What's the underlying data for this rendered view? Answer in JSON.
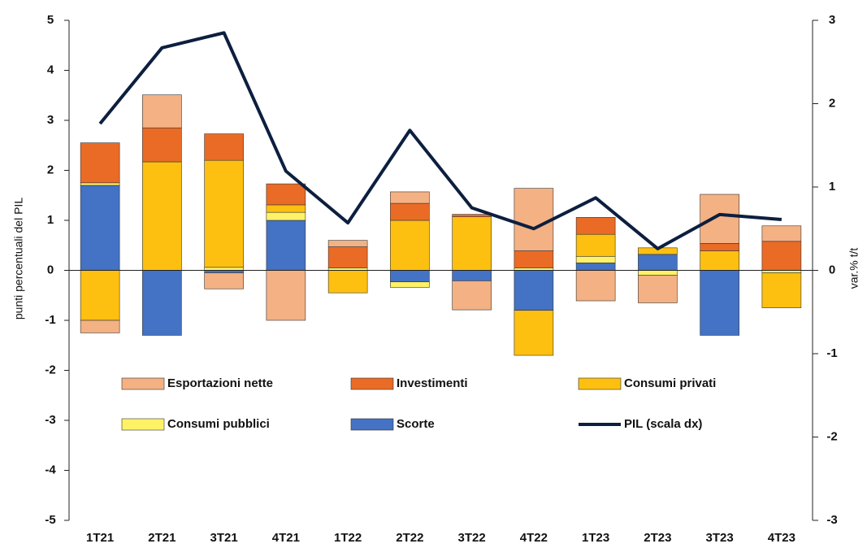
{
  "chart_data": {
    "type": "bar",
    "categories": [
      "1T21",
      "2T21",
      "3T21",
      "4T21",
      "1T22",
      "2T22",
      "3T22",
      "4T22",
      "1T23",
      "2T23",
      "3T23",
      "4T23"
    ],
    "series": [
      {
        "name": "Esportazioni nette",
        "color": "#f4b183",
        "values": [
          -0.25,
          0.66,
          -0.32,
          -1.0,
          0.13,
          0.23,
          -0.58,
          1.25,
          -0.61,
          -0.55,
          0.98,
          0.31
        ]
      },
      {
        "name": "Investimenti",
        "color": "#ea6b26",
        "values": [
          0.8,
          0.68,
          0.53,
          0.42,
          0.42,
          0.34,
          0.05,
          0.34,
          0.34,
          0,
          0.15,
          0.58
        ]
      },
      {
        "name": "Consumi privati",
        "color": "#fdc010",
        "values": [
          -1.0,
          2.17,
          2.14,
          0.15,
          -0.45,
          1.0,
          1.07,
          -0.9,
          0.44,
          0.13,
          0.39,
          -0.7
        ]
      },
      {
        "name": "Consumi pubblici",
        "color": "#fff266",
        "values": [
          0.05,
          0,
          0.06,
          0.16,
          0.05,
          -0.11,
          0,
          0.05,
          0.13,
          -0.1,
          0,
          -0.05
        ]
      },
      {
        "name": "Scorte",
        "color": "#4472c4",
        "values": [
          1.7,
          -1.3,
          -0.05,
          1.0,
          0,
          -0.23,
          -0.21,
          -0.8,
          0.15,
          0.32,
          -1.3,
          0
        ]
      },
      {
        "name": "PIL (scala dx)",
        "color": "#0d1f3f",
        "axis": "y2",
        "type": "line",
        "values": [
          1.76,
          2.67,
          2.85,
          1.19,
          0.57,
          1.68,
          0.75,
          0.5,
          0.87,
          0.26,
          0.67,
          0.61
        ]
      }
    ],
    "ylabel": "punti percentuali del PIL",
    "y2label": "var.% t/t",
    "ylim": [
      -5,
      5
    ],
    "yticks": [
      -5,
      -4,
      -3,
      -2,
      -1,
      0,
      1,
      2,
      3,
      4,
      5
    ],
    "y2lim": [
      -3,
      3
    ],
    "y2ticks": [
      -3,
      -2,
      -1,
      0,
      1,
      2,
      3
    ],
    "stack_order": [
      "Scorte",
      "Consumi pubblici",
      "Consumi privati",
      "Investimenti",
      "Esportazioni nette"
    ]
  }
}
